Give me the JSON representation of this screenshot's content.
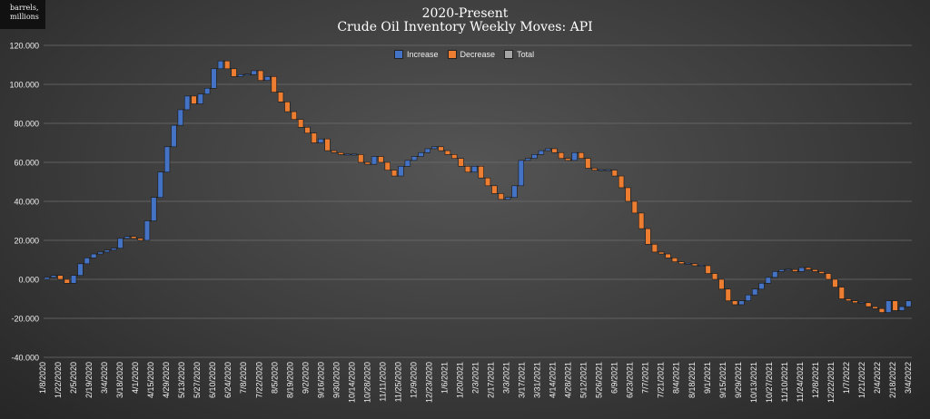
{
  "unit_label": {
    "line1": "barrels,",
    "line2": "millions"
  },
  "chart_data": {
    "type": "waterfall",
    "title": "2020-Present",
    "subtitle": "Crude Oil Inventory Weekly Moves:  API",
    "ylim": [
      -40,
      120
    ],
    "ytick_labels": [
      "120.000",
      "100.000",
      "80.000",
      "60.000",
      "40.000",
      "20.000",
      "0.000",
      "-20.000",
      "-40.000"
    ],
    "grid": true,
    "legend_position": "top-center",
    "legend": [
      {
        "name": "Increase",
        "color": "#4472c4"
      },
      {
        "name": "Decrease",
        "color": "#ed7d31"
      },
      {
        "name": "Total",
        "color": "#a5a5a5"
      }
    ],
    "xtick_labels": [
      "1/8/2020",
      "1/22/2020",
      "2/5/2020",
      "2/19/2020",
      "3/4/2020",
      "3/18/2020",
      "4/1/2020",
      "4/15/2020",
      "4/29/2020",
      "5/13/2020",
      "5/27/2020",
      "6/10/2020",
      "6/24/2020",
      "7/8/2020",
      "7/22/2020",
      "8/5/2020",
      "8/19/2020",
      "9/2/2020",
      "9/16/2020",
      "9/30/2020",
      "10/14/2020",
      "10/28/2020",
      "11/11/2020",
      "11/25/2020",
      "12/9/2020",
      "12/23/2020",
      "1/6/2021",
      "1/20/2021",
      "2/3/2021",
      "2/17/2021",
      "3/3/2021",
      "3/17/2021",
      "3/31/2021",
      "4/14/2021",
      "4/28/2021",
      "5/12/2021",
      "5/26/2021",
      "6/9/2021",
      "6/23/2021",
      "7/7/2021",
      "7/21/2021",
      "8/4/2021",
      "8/18/2021",
      "9/1/2021",
      "9/15/2021",
      "9/29/2021",
      "10/13/2021",
      "10/27/2021",
      "11/10/2021",
      "11/24/2021",
      "12/8/2021",
      "12/22/2021",
      "1/7/2022",
      "1/21/2022",
      "2/4/2022",
      "2/18/2022",
      "3/4/2022"
    ],
    "cumulative": [
      0,
      1,
      2,
      0,
      -2,
      2,
      8,
      11,
      13,
      14,
      15,
      16,
      21,
      22,
      21,
      20,
      30,
      42,
      55,
      68,
      79,
      87,
      94,
      90,
      95,
      98,
      108,
      112,
      108,
      104,
      105,
      105,
      107,
      102,
      104,
      96,
      91,
      86,
      82,
      78,
      75,
      70,
      72,
      66,
      65,
      64,
      64,
      64,
      60,
      59,
      63,
      60,
      56,
      53,
      58,
      61,
      63,
      65,
      67,
      68,
      66,
      64,
      62,
      58,
      55,
      58,
      52,
      48,
      44,
      41,
      42,
      48,
      61,
      62,
      64,
      66,
      67,
      65,
      62,
      61,
      65,
      62,
      57,
      56,
      56,
      56,
      53,
      47,
      40,
      34,
      26,
      18,
      14,
      13,
      11,
      9,
      8,
      8,
      7,
      7,
      3,
      0,
      -5,
      -11,
      -13,
      -11,
      -8,
      -5,
      -2,
      1,
      4,
      5,
      5,
      4,
      6,
      5,
      4,
      3,
      0,
      -4,
      -10,
      -11,
      -12,
      -12,
      -14,
      -15,
      -17,
      -11,
      -16,
      -14,
      -11
    ]
  }
}
